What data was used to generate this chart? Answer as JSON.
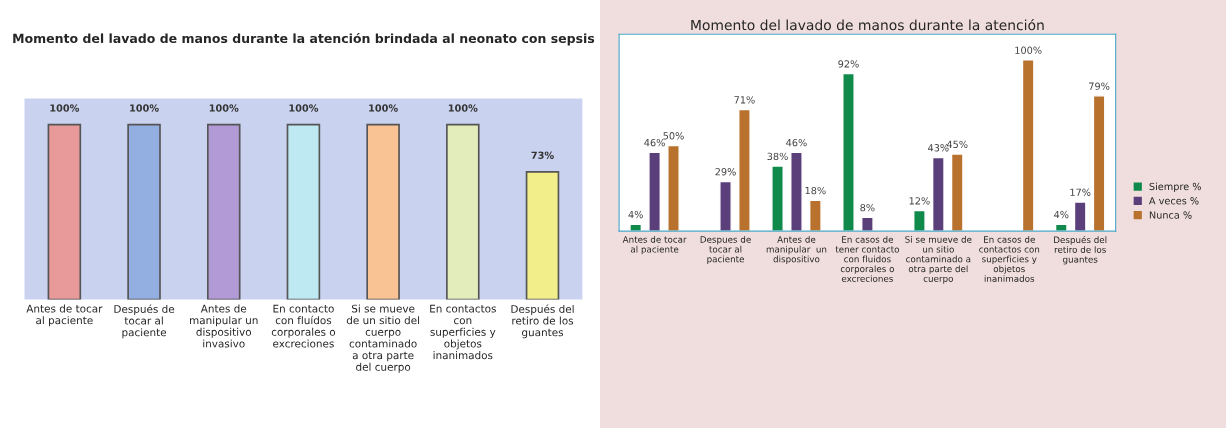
{
  "chart_data": [
    {
      "type": "bar",
      "title": "Momento del lavado de manos durante la atención brindada al neonato con sepsis",
      "categories": [
        "Antes de tocar\nal paciente",
        "Después de\ntocar al\npaciente",
        "Antes de\nmanipular un\ndispositivo\ninvasivo",
        "En contacto\ncon fluídos\ncorporales o\nexcreciones",
        "Si se mueve\nde un sitio del\ncuerpo\ncontaminado\na otra parte\ndel cuerpo",
        "En contactos\ncon\nsuperficies y\nobjetos\ninanimados",
        "Después del\nretiro de los\nguantes"
      ],
      "values": [
        100,
        100,
        100,
        100,
        100,
        100,
        73
      ],
      "value_labels": [
        "100%",
        "100%",
        "100%",
        "100%",
        "100%",
        "100%",
        "73%"
      ],
      "colors": [
        "#e89a9a",
        "#93aee0",
        "#b29ad6",
        "#bfe9f2",
        "#f9c394",
        "#e3edbc",
        "#f2ef8a"
      ],
      "legend": false
    },
    {
      "type": "bar",
      "title": "Momento del lavado de manos durante la atención",
      "categories": [
        "Antes de tocar\nal paciente",
        "Despues de\ntocar al\npaciente",
        "Antes de\nmanipular  un\ndispositivo",
        "En casos de\ntener contacto\ncon fluidos\ncorporales o\nexcreciones",
        "Si se mueve de\nun sitio\ncontaminado a\notra parte del\ncuerpo",
        "En casos de\ncontactos con\nsuperficies y\nobjetos\ninanimados",
        "Después del\nretiro de los\nguantes"
      ],
      "series": [
        {
          "name": "Siempre %",
          "color": "#108a4a",
          "values": [
            4,
            null,
            38,
            92,
            12,
            null,
            4
          ],
          "value_labels": [
            "4%",
            null,
            "38%",
            "92%",
            "12%",
            null,
            "4%"
          ]
        },
        {
          "name": "A veces %",
          "color": "#5b3f7a",
          "values": [
            46,
            29,
            46,
            8,
            43,
            null,
            17
          ],
          "value_labels": [
            "46%",
            "29%",
            "46%",
            "8%",
            "43%",
            null,
            "17%"
          ]
        },
        {
          "name": "Nunca %",
          "color": "#b8722e",
          "values": [
            50,
            71,
            18,
            null,
            45,
            100,
            79
          ],
          "value_labels": [
            "50%",
            "71%",
            "18%",
            null,
            "45%",
            "100%",
            "79%"
          ]
        }
      ],
      "legend": "right"
    }
  ]
}
